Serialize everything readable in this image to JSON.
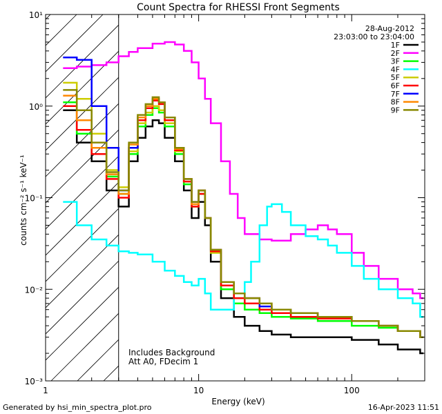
{
  "chart_data": {
    "type": "line",
    "title": "Count Spectra for RHESSI Front Segments",
    "xlabel": "Energy (keV)",
    "ylabel": "counts cm⁻² s⁻¹ keV⁻¹",
    "xscale": "log",
    "yscale": "log",
    "xlim": [
      1,
      300
    ],
    "ylim": [
      0.001,
      10
    ],
    "x_ticks": [
      {
        "value": 1,
        "label": "1"
      },
      {
        "value": 10,
        "label": "10"
      },
      {
        "value": 100,
        "label": "100"
      }
    ],
    "y_ticks": [
      {
        "value": 10,
        "label": "10¹"
      },
      {
        "value": 1,
        "label": "10⁰"
      },
      {
        "value": 0.1,
        "label": "10⁻¹"
      },
      {
        "value": 0.01,
        "label": "10⁻²"
      },
      {
        "value": 0.001,
        "label": "10⁻³"
      }
    ],
    "shaded_region": {
      "x_from": 1,
      "x_to": 3,
      "style": "hatched"
    },
    "date": "28-Aug-2012",
    "time_range": "23:03:00 to 23:04:00",
    "annotations": [
      "Includes Background",
      "Att A0, FDecim 1"
    ],
    "footer_left": "Generated by hsi_min_spectra_plot.pro",
    "footer_right": "16-Apr-2023 11:51",
    "series": [
      {
        "name": "1F",
        "color": "#000000",
        "x": [
          1.3,
          1.6,
          2.0,
          2.5,
          3.0,
          3.5,
          4.0,
          4.5,
          5.0,
          5.5,
          6.0,
          7.0,
          8.0,
          9.0,
          10.0,
          11.0,
          12.0,
          14.0,
          17.0,
          20.0,
          25.0,
          30.0,
          40.0,
          60.0,
          100.0,
          150.0,
          200.0,
          280.0
        ],
        "y": [
          0.9,
          0.4,
          0.25,
          0.12,
          0.08,
          0.25,
          0.45,
          0.6,
          0.7,
          0.65,
          0.45,
          0.25,
          0.12,
          0.06,
          0.09,
          0.05,
          0.02,
          0.008,
          0.005,
          0.004,
          0.0035,
          0.0032,
          0.003,
          0.003,
          0.0028,
          0.0025,
          0.0022,
          0.002
        ]
      },
      {
        "name": "2F",
        "color": "#ff00ff",
        "x": [
          1.3,
          1.6,
          2.0,
          2.5,
          3.0,
          3.5,
          4.0,
          5.0,
          6.0,
          7.0,
          8.0,
          9.0,
          10.0,
          11.0,
          12.0,
          14.0,
          16.0,
          18.0,
          20.0,
          25.0,
          30.0,
          40.0,
          50.0,
          60.0,
          70.0,
          80.0,
          100.0,
          120.0,
          150.0,
          200.0,
          250.0,
          280.0
        ],
        "y": [
          2.6,
          2.7,
          2.8,
          3.0,
          3.5,
          3.9,
          4.3,
          4.8,
          5.0,
          4.7,
          4.0,
          3.0,
          2.0,
          1.2,
          0.65,
          0.25,
          0.11,
          0.06,
          0.04,
          0.035,
          0.034,
          0.04,
          0.045,
          0.05,
          0.045,
          0.04,
          0.025,
          0.018,
          0.013,
          0.01,
          0.009,
          0.008
        ]
      },
      {
        "name": "3F",
        "color": "#00ff00",
        "x": [
          1.3,
          1.6,
          2.0,
          2.5,
          3.0,
          3.5,
          4.0,
          4.5,
          5.0,
          5.5,
          6.0,
          7.0,
          8.0,
          9.0,
          10.0,
          11.0,
          12.0,
          14.0,
          17.0,
          20.0,
          25.0,
          30.0,
          40.0,
          60.0,
          100.0,
          150.0,
          200.0,
          280.0
        ],
        "y": [
          1.1,
          0.5,
          0.3,
          0.17,
          0.11,
          0.3,
          0.6,
          0.8,
          0.95,
          0.85,
          0.6,
          0.3,
          0.14,
          0.08,
          0.11,
          0.06,
          0.025,
          0.01,
          0.007,
          0.006,
          0.0055,
          0.005,
          0.0048,
          0.0045,
          0.004,
          0.0038,
          0.0035,
          0.003
        ]
      },
      {
        "name": "4F",
        "color": "#00ffff",
        "x": [
          1.3,
          1.6,
          2.0,
          2.5,
          3.0,
          3.5,
          4.0,
          5.0,
          6.0,
          7.0,
          8.0,
          9.0,
          10.0,
          11.0,
          12.0,
          14.0,
          17.0,
          20.0,
          22.0,
          25.0,
          28.0,
          30.0,
          35.0,
          40.0,
          50.0,
          60.0,
          70.0,
          80.0,
          100.0,
          120.0,
          150.0,
          200.0,
          250.0,
          280.0
        ],
        "y": [
          0.09,
          0.05,
          0.035,
          0.03,
          0.026,
          0.025,
          0.024,
          0.02,
          0.016,
          0.014,
          0.012,
          0.011,
          0.013,
          0.009,
          0.006,
          0.006,
          0.008,
          0.012,
          0.02,
          0.05,
          0.08,
          0.085,
          0.07,
          0.05,
          0.038,
          0.035,
          0.03,
          0.025,
          0.018,
          0.013,
          0.01,
          0.008,
          0.007,
          0.005
        ]
      },
      {
        "name": "5F",
        "color": "#cccc00",
        "x": [
          1.3,
          1.6,
          2.0,
          2.5,
          3.0,
          3.5,
          4.0,
          4.5,
          5.0,
          5.5,
          6.0,
          7.0,
          8.0,
          9.0,
          10.0,
          11.0,
          12.0,
          14.0,
          17.0,
          20.0,
          25.0,
          30.0,
          40.0,
          60.0,
          100.0,
          150.0,
          200.0,
          280.0
        ],
        "y": [
          1.8,
          1.2,
          0.5,
          0.2,
          0.13,
          0.32,
          0.65,
          0.85,
          1.0,
          0.9,
          0.65,
          0.32,
          0.15,
          0.08,
          0.12,
          0.06,
          0.025,
          0.011,
          0.008,
          0.007,
          0.006,
          0.0055,
          0.005,
          0.0048,
          0.0045,
          0.004,
          0.0035,
          0.003
        ]
      },
      {
        "name": "6F",
        "color": "#ff0000",
        "x": [
          1.3,
          1.6,
          2.0,
          2.5,
          3.0,
          3.5,
          4.0,
          4.5,
          5.0,
          5.5,
          6.0,
          7.0,
          8.0,
          9.0,
          10.0,
          11.0,
          12.0,
          14.0,
          17.0,
          20.0,
          25.0,
          30.0,
          40.0,
          60.0,
          100.0,
          150.0,
          200.0,
          280.0
        ],
        "y": [
          1.0,
          0.55,
          0.3,
          0.16,
          0.1,
          0.35,
          0.7,
          0.95,
          1.15,
          1.05,
          0.7,
          0.33,
          0.15,
          0.08,
          0.11,
          0.06,
          0.026,
          0.011,
          0.008,
          0.007,
          0.006,
          0.0055,
          0.005,
          0.0048,
          0.0045,
          0.004,
          0.0035,
          0.003
        ]
      },
      {
        "name": "7F",
        "color": "#0000ff",
        "x": [
          1.3,
          1.6,
          2.0,
          2.5,
          3.0,
          3.5,
          4.0,
          4.5,
          5.0,
          5.5,
          6.0,
          7.0,
          8.0,
          9.0,
          10.0,
          11.0,
          12.0,
          14.0,
          17.0,
          20.0,
          25.0,
          30.0,
          40.0,
          60.0,
          100.0,
          150.0,
          200.0,
          280.0
        ],
        "y": [
          3.4,
          3.2,
          1.0,
          0.35,
          0.12,
          0.35,
          0.75,
          1.0,
          1.2,
          1.1,
          0.75,
          0.35,
          0.16,
          0.09,
          0.12,
          0.06,
          0.027,
          0.012,
          0.009,
          0.008,
          0.0065,
          0.006,
          0.0055,
          0.005,
          0.0045,
          0.004,
          0.0035,
          0.003
        ]
      },
      {
        "name": "8F",
        "color": "#ff8800",
        "x": [
          1.3,
          1.6,
          2.0,
          2.5,
          3.0,
          3.5,
          4.0,
          4.5,
          5.0,
          5.5,
          6.0,
          7.0,
          8.0,
          9.0,
          10.0,
          11.0,
          12.0,
          14.0,
          17.0,
          20.0,
          25.0,
          30.0,
          40.0,
          60.0,
          100.0,
          150.0,
          200.0,
          280.0
        ],
        "y": [
          1.3,
          0.7,
          0.35,
          0.18,
          0.11,
          0.38,
          0.75,
          1.0,
          1.2,
          1.1,
          0.75,
          0.34,
          0.16,
          0.085,
          0.12,
          0.06,
          0.027,
          0.012,
          0.009,
          0.008,
          0.007,
          0.006,
          0.0055,
          0.005,
          0.0045,
          0.004,
          0.0035,
          0.003
        ]
      },
      {
        "name": "9F",
        "color": "#888800",
        "x": [
          1.3,
          1.6,
          2.0,
          2.5,
          3.0,
          3.5,
          4.0,
          4.5,
          5.0,
          5.5,
          6.0,
          7.0,
          8.0,
          9.0,
          10.0,
          11.0,
          12.0,
          14.0,
          17.0,
          20.0,
          25.0,
          30.0,
          40.0,
          60.0,
          100.0,
          150.0,
          200.0,
          280.0
        ],
        "y": [
          1.5,
          0.9,
          0.4,
          0.19,
          0.12,
          0.4,
          0.8,
          1.05,
          1.25,
          1.1,
          0.75,
          0.35,
          0.16,
          0.09,
          0.12,
          0.06,
          0.027,
          0.012,
          0.009,
          0.008,
          0.007,
          0.006,
          0.0055,
          0.005,
          0.0045,
          0.004,
          0.0035,
          0.003
        ]
      }
    ]
  }
}
